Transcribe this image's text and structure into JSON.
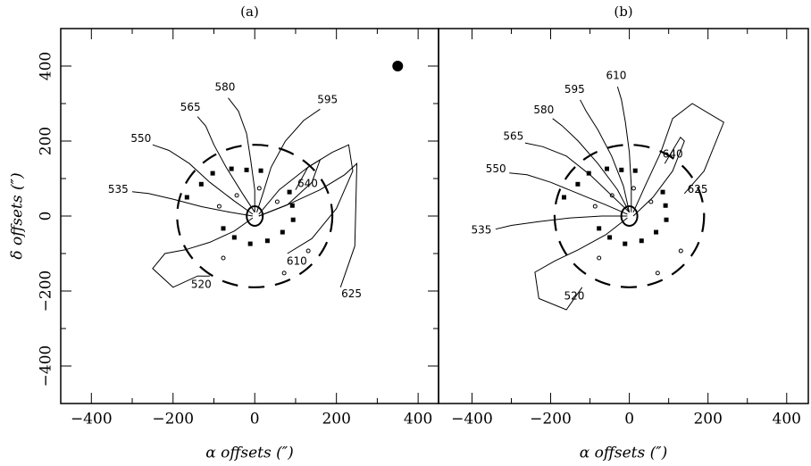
{
  "chart_data": [
    {
      "type": "contour",
      "title": "(a)",
      "x_label": "α offsets (″)",
      "y_label": "δ offsets (″)",
      "xlim": [
        -475,
        450
      ],
      "ylim": [
        -500,
        500
      ],
      "xticks": [
        {
          "value": -400,
          "label": "−400"
        },
        {
          "value": -200,
          "label": "−200"
        },
        0,
        200,
        400
      ],
      "yticks": [
        {
          "value": -400,
          "label": "−400"
        },
        {
          "value": -200,
          "label": "−200"
        },
        0,
        200,
        400
      ],
      "ring_radius": 190,
      "beam": {
        "x": 350,
        "y": 400
      },
      "contours": [
        {
          "level": 520,
          "x": [
            -5,
            -50,
            -110,
            -170,
            -220,
            -250,
            -200,
            -140,
            -110
          ],
          "y": [
            -5,
            -40,
            -70,
            -90,
            -100,
            -140,
            -190,
            -160,
            -160
          ]
        },
        {
          "level": 535,
          "x": [
            -5,
            -60,
            -130,
            -200,
            -260,
            -300
          ],
          "y": [
            0,
            10,
            25,
            45,
            60,
            65
          ]
        },
        {
          "level": 550,
          "x": [
            -5,
            -50,
            -110,
            -160,
            -210,
            -250
          ],
          "y": [
            5,
            40,
            90,
            140,
            175,
            190
          ]
        },
        {
          "level": 565,
          "x": [
            0,
            -30,
            -70,
            -100,
            -120,
            -140
          ],
          "y": [
            10,
            60,
            130,
            190,
            240,
            265
          ]
        },
        {
          "level": 580,
          "x": [
            0,
            0,
            -10,
            -20,
            -40,
            -65
          ],
          "y": [
            10,
            70,
            150,
            220,
            280,
            315
          ]
        },
        {
          "level": 595,
          "x": [
            5,
            20,
            40,
            75,
            120,
            160
          ],
          "y": [
            10,
            60,
            130,
            200,
            255,
            285
          ]
        },
        {
          "level": 610,
          "x": [
            10,
            60,
            130,
            190,
            230,
            240,
            200,
            140,
            80
          ],
          "y": [
            5,
            70,
            130,
            170,
            190,
            120,
            20,
            -60,
            -100
          ]
        },
        {
          "level": 625,
          "x": [
            10,
            80,
            160,
            220,
            250,
            245,
            210
          ],
          "y": [
            0,
            30,
            70,
            110,
            140,
            -80,
            -190
          ]
        },
        {
          "level": 640,
          "x": [
            10,
            80,
            140,
            160,
            130,
            100
          ],
          "y": [
            0,
            30,
            90,
            150,
            130,
            70
          ]
        }
      ],
      "squares": {
        "x": [
          -57,
          -20,
          15,
          -103,
          -131,
          -166,
          85,
          92,
          94,
          68,
          31,
          -11,
          -50,
          -77
        ],
        "y": [
          126,
          123,
          121,
          114,
          85,
          50,
          64,
          28,
          -10,
          -43,
          -66,
          -74,
          -57,
          -33
        ]
      },
      "circles": {
        "x": [
          -44,
          11,
          55,
          -87,
          -77,
          72,
          131
        ],
        "y": [
          55,
          74,
          38,
          26,
          -112,
          -152,
          -93
        ]
      }
    },
    {
      "type": "contour",
      "title": "(b)",
      "x_label": "α offsets (″)",
      "xlim": [
        -485,
        455
      ],
      "ylim": [
        -500,
        500
      ],
      "xticks": [
        {
          "value": -400,
          "label": "−400"
        },
        {
          "value": -200,
          "label": "−200"
        },
        0,
        200,
        400
      ],
      "ring_radius": 190,
      "contours": [
        {
          "level": 520,
          "x": [
            -5,
            -60,
            -130,
            -190,
            -240,
            -230,
            -160,
            -120
          ],
          "y": [
            -5,
            -50,
            -90,
            -120,
            -150,
            -220,
            -250,
            -190
          ]
        },
        {
          "level": 535,
          "x": [
            -5,
            -70,
            -150,
            -230,
            -300,
            -340
          ],
          "y": [
            0,
            0,
            -5,
            -15,
            -25,
            -35
          ]
        },
        {
          "level": 550,
          "x": [
            -5,
            -60,
            -130,
            -200,
            -260,
            -305
          ],
          "y": [
            5,
            30,
            60,
            90,
            110,
            115
          ]
        },
        {
          "level": 565,
          "x": [
            0,
            -40,
            -100,
            -160,
            -220,
            -265
          ],
          "y": [
            10,
            50,
            110,
            160,
            185,
            195
          ]
        },
        {
          "level": 580,
          "x": [
            0,
            -30,
            -80,
            -130,
            -170,
            -195
          ],
          "y": [
            10,
            70,
            140,
            200,
            240,
            260
          ]
        },
        {
          "level": 595,
          "x": [
            0,
            -15,
            -45,
            -80,
            -110,
            -125
          ],
          "y": [
            10,
            80,
            160,
            230,
            280,
            310
          ]
        },
        {
          "level": 610,
          "x": [
            5,
            5,
            0,
            -10,
            -20,
            -30
          ],
          "y": [
            10,
            80,
            170,
            250,
            310,
            345
          ]
        },
        {
          "level": 625,
          "x": [
            10,
            40,
            80,
            110,
            160,
            240,
            190,
            140
          ],
          "y": [
            10,
            80,
            170,
            260,
            300,
            250,
            120,
            60
          ]
        },
        {
          "level": 640,
          "x": [
            10,
            60,
            110,
            140,
            130,
            90
          ],
          "y": [
            0,
            50,
            120,
            200,
            210,
            140
          ]
        }
      ],
      "squares": {
        "x": [
          -57,
          -20,
          15,
          -103,
          -131,
          -166,
          85,
          92,
          94,
          68,
          31,
          -11,
          -50,
          -77
        ],
        "y": [
          126,
          123,
          121,
          114,
          85,
          50,
          64,
          28,
          -10,
          -43,
          -66,
          -74,
          -57,
          -33
        ]
      },
      "circles": {
        "x": [
          -44,
          11,
          55,
          -87,
          -77,
          72,
          131
        ],
        "y": [
          55,
          74,
          38,
          26,
          -112,
          -152,
          -93
        ]
      }
    }
  ]
}
